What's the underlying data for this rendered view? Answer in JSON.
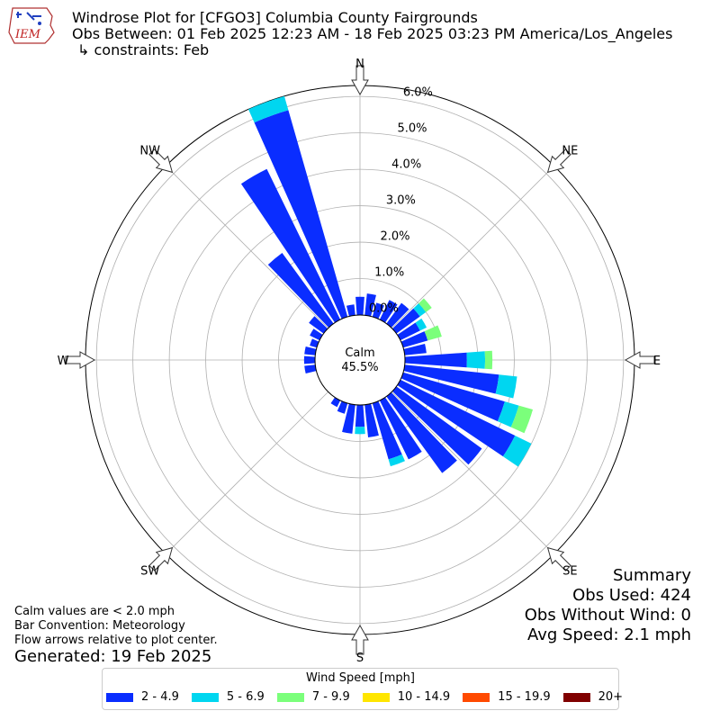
{
  "logo": {
    "text": "IEM"
  },
  "header": {
    "title": "Windrose Plot for [CFGO3] Columbia County Fairgrounds",
    "obs_between": "Obs Between: 01 Feb 2025 12:23 AM - 18 Feb 2025 03:23 PM America/Los_Angeles",
    "constraints": "↳ constraints: Feb"
  },
  "summary": {
    "heading": "Summary",
    "obs_used": "Obs Used: 424",
    "obs_without_wind": "Obs Without Wind: 0",
    "avg_speed": "Avg Speed: 2.1 mph"
  },
  "notes": {
    "calm_def": "Calm values are < 2.0 mph",
    "bar_convention": "Bar Convention: Meteorology",
    "flow_arrows": "Flow arrows relative to plot center.",
    "generated": "Generated: 19 Feb 2025"
  },
  "legend": {
    "title": "Wind Speed [mph]",
    "items": [
      {
        "label": "2 - 4.9",
        "color": "#0a2dff"
      },
      {
        "label": "5 - 6.9",
        "color": "#00d6f0"
      },
      {
        "label": "7 - 9.9",
        "color": "#7bff7b"
      },
      {
        "label": "10 - 14.9",
        "color": "#ffe600"
      },
      {
        "label": "15 - 19.9",
        "color": "#ff4a00"
      },
      {
        "label": "20+",
        "color": "#800000"
      }
    ]
  },
  "chart_data": {
    "type": "windrose",
    "calm_label": "Calm",
    "calm_value": "45.5%",
    "radial_ticks": [
      "0.0%",
      "1.0%",
      "2.0%",
      "3.0%",
      "4.0%",
      "5.0%",
      "6.0%"
    ],
    "rmax": 6.3,
    "compass_labels": [
      {
        "label": "N",
        "deg": 0
      },
      {
        "label": "NE",
        "deg": 45
      },
      {
        "label": "E",
        "deg": 90
      },
      {
        "label": "SE",
        "deg": 135
      },
      {
        "label": "S",
        "deg": 180
      },
      {
        "label": "SW",
        "deg": 225
      },
      {
        "label": "W",
        "deg": 270
      },
      {
        "label": "NW",
        "deg": 315
      }
    ],
    "bin_width_deg": 10,
    "bin_directions": [
      0,
      10,
      20,
      30,
      40,
      50,
      60,
      70,
      80,
      90,
      100,
      110,
      120,
      130,
      140,
      150,
      160,
      170,
      180,
      190,
      200,
      210,
      220,
      230,
      240,
      250,
      260,
      270,
      280,
      290,
      300,
      310,
      320,
      330,
      340,
      350
    ],
    "speed_bins": [
      "2 - 4.9",
      "5 - 6.9",
      "7 - 9.9",
      "10 - 14.9",
      "15 - 19.9",
      "20+"
    ],
    "series": [
      {
        "name": "2 - 4.9",
        "color": "#0a2dff",
        "values": [
          0.5,
          0.6,
          0.4,
          0.6,
          0.7,
          0.8,
          0.6,
          0.7,
          0.6,
          1.7,
          2.6,
          2.9,
          3.5,
          2.9,
          2.6,
          1.8,
          1.6,
          0.9,
          0.6,
          0.8,
          0.3,
          0.2,
          0.0,
          0.0,
          0.0,
          0.0,
          0.3,
          0.3,
          0.3,
          0.2,
          0.3,
          0.5,
          2.4,
          4.6,
          5.9,
          0.3
        ]
      },
      {
        "name": "5 - 6.9",
        "color": "#00d6f0",
        "values": [
          0,
          0,
          0,
          0,
          0,
          0.2,
          0.2,
          0,
          0,
          0.5,
          0.5,
          0.4,
          0.5,
          0.0,
          0.0,
          0.0,
          0.2,
          0.0,
          0.2,
          0.0,
          0,
          0,
          0,
          0,
          0,
          0,
          0,
          0,
          0,
          0,
          0,
          0,
          0,
          0,
          0.4,
          0
        ]
      },
      {
        "name": "7 - 9.9",
        "color": "#7bff7b",
        "values": [
          0,
          0,
          0,
          0,
          0,
          0.2,
          0.0,
          0.4,
          0,
          0.2,
          0,
          0.4,
          0,
          0,
          0,
          0,
          0,
          0,
          0,
          0,
          0,
          0,
          0,
          0,
          0,
          0,
          0,
          0,
          0,
          0,
          0,
          0,
          0,
          0,
          0,
          0
        ]
      },
      {
        "name": "10 - 14.9",
        "color": "#ffe600",
        "values": [
          0,
          0,
          0,
          0,
          0,
          0,
          0,
          0,
          0,
          0,
          0,
          0,
          0,
          0,
          0,
          0,
          0,
          0,
          0,
          0,
          0,
          0,
          0,
          0,
          0,
          0,
          0,
          0,
          0,
          0,
          0,
          0,
          0,
          0,
          0,
          0
        ]
      },
      {
        "name": "15 - 19.9",
        "color": "#ff4a00",
        "values": [
          0,
          0,
          0,
          0,
          0,
          0,
          0,
          0,
          0,
          0,
          0,
          0,
          0,
          0,
          0,
          0,
          0,
          0,
          0,
          0,
          0,
          0,
          0,
          0,
          0,
          0,
          0,
          0,
          0,
          0,
          0,
          0,
          0,
          0,
          0,
          0
        ]
      },
      {
        "name": "20+",
        "color": "#800000",
        "values": [
          0,
          0,
          0,
          0,
          0,
          0,
          0,
          0,
          0,
          0,
          0,
          0,
          0,
          0,
          0,
          0,
          0,
          0,
          0,
          0,
          0,
          0,
          0,
          0,
          0,
          0,
          0,
          0,
          0,
          0,
          0,
          0,
          0,
          0,
          0,
          0
        ]
      }
    ]
  }
}
